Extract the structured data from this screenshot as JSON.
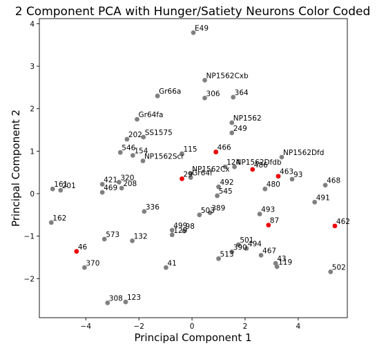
{
  "chart_data": {
    "type": "scatter",
    "title": "2 Component PCA with Hunger/Satiety Neurons Color Coded",
    "xlabel": "Principal Component 1",
    "ylabel": "Principal Component 2",
    "xlim": [
      -5.75,
      5.85
    ],
    "ylim": [
      -2.92,
      4.12
    ],
    "xticks": [
      -4,
      -2,
      0,
      2,
      4
    ],
    "yticks": [
      -2,
      -1,
      0,
      1,
      2,
      3,
      4
    ],
    "colors": {
      "grey": "#808080",
      "red": "#ee0000"
    },
    "points": [
      {
        "label": "E49",
        "x": 0.05,
        "y": 3.79,
        "color": "grey"
      },
      {
        "label": "NP1562Cxb",
        "x": 0.48,
        "y": 2.67,
        "color": "grey"
      },
      {
        "label": "Gr66a",
        "x": -1.3,
        "y": 2.3,
        "color": "grey"
      },
      {
        "label": "306",
        "x": 0.48,
        "y": 2.25,
        "color": "grey"
      },
      {
        "label": "364",
        "x": 1.55,
        "y": 2.27,
        "color": "grey"
      },
      {
        "label": "Gr64fa",
        "x": -2.07,
        "y": 1.75,
        "color": "grey"
      },
      {
        "label": "NP1562",
        "x": 1.5,
        "y": 1.67,
        "color": "grey"
      },
      {
        "label": "249",
        "x": 1.5,
        "y": 1.43,
        "color": "grey"
      },
      {
        "label": "202",
        "x": -2.45,
        "y": 1.28,
        "color": "grey"
      },
      {
        "label": "SS1575",
        "x": -1.83,
        "y": 1.33,
        "color": "grey"
      },
      {
        "label": "546",
        "x": -2.7,
        "y": 0.97,
        "color": "grey"
      },
      {
        "label": "154",
        "x": -2.23,
        "y": 0.9,
        "color": "grey"
      },
      {
        "label": "115",
        "x": -0.38,
        "y": 0.94,
        "color": "grey"
      },
      {
        "label": "466",
        "x": 0.9,
        "y": 0.98,
        "color": "red"
      },
      {
        "label": "NP1562Dfd",
        "x": 3.38,
        "y": 0.86,
        "color": "grey"
      },
      {
        "label": "NP1562Scr",
        "x": -1.85,
        "y": 0.77,
        "color": "grey"
      },
      {
        "label": "124",
        "x": 1.25,
        "y": 0.63,
        "color": "grey"
      },
      {
        "label": "NP1562Dfdb",
        "x": 1.6,
        "y": 0.63,
        "color": "grey"
      },
      {
        "label": "486",
        "x": 2.28,
        "y": 0.57,
        "color": "red"
      },
      {
        "label": "NP1562Cx",
        "x": -0.05,
        "y": 0.47,
        "color": "grey"
      },
      {
        "label": "Gr64f",
        "x": -0.05,
        "y": 0.38,
        "color": "grey"
      },
      {
        "label": "463",
        "x": 3.25,
        "y": 0.41,
        "color": "red"
      },
      {
        "label": "93",
        "x": 3.77,
        "y": 0.34,
        "color": "grey"
      },
      {
        "label": "29",
        "x": -0.38,
        "y": 0.35,
        "color": "red"
      },
      {
        "label": "421",
        "x": -3.38,
        "y": 0.22,
        "color": "grey"
      },
      {
        "label": "320",
        "x": -2.75,
        "y": 0.27,
        "color": "grey"
      },
      {
        "label": "492",
        "x": 1.0,
        "y": 0.16,
        "color": "grey"
      },
      {
        "label": "480",
        "x": 2.75,
        "y": 0.11,
        "color": "grey"
      },
      {
        "label": "468",
        "x": 5.02,
        "y": 0.2,
        "color": "grey"
      },
      {
        "label": "161",
        "x": -5.25,
        "y": 0.11,
        "color": "grey"
      },
      {
        "label": "201",
        "x": -4.95,
        "y": 0.08,
        "color": "grey"
      },
      {
        "label": "208",
        "x": -2.65,
        "y": 0.13,
        "color": "grey"
      },
      {
        "label": "469",
        "x": -3.38,
        "y": 0.03,
        "color": "grey"
      },
      {
        "label": "545",
        "x": 0.95,
        "y": -0.05,
        "color": "grey"
      },
      {
        "label": "491",
        "x": 4.62,
        "y": -0.2,
        "color": "grey"
      },
      {
        "label": "336",
        "x": -1.8,
        "y": -0.42,
        "color": "grey"
      },
      {
        "label": "389",
        "x": 0.68,
        "y": -0.45,
        "color": "grey"
      },
      {
        "label": "503",
        "x": 0.28,
        "y": -0.5,
        "color": "grey"
      },
      {
        "label": "493",
        "x": 2.55,
        "y": -0.48,
        "color": "grey"
      },
      {
        "label": "162",
        "x": -5.3,
        "y": -0.68,
        "color": "grey"
      },
      {
        "label": "87",
        "x": 2.88,
        "y": -0.74,
        "color": "red"
      },
      {
        "label": "462",
        "x": 5.38,
        "y": -0.76,
        "color": "red"
      },
      {
        "label": "499",
        "x": -0.75,
        "y": -0.86,
        "color": "grey"
      },
      {
        "label": "98",
        "x": -0.3,
        "y": -0.88,
        "color": "grey"
      },
      {
        "label": "129",
        "x": -0.75,
        "y": -0.97,
        "color": "grey"
      },
      {
        "label": "573",
        "x": -3.3,
        "y": -1.07,
        "color": "grey"
      },
      {
        "label": "132",
        "x": -2.25,
        "y": -1.11,
        "color": "grey"
      },
      {
        "label": "501",
        "x": 1.75,
        "y": -1.2,
        "color": "grey"
      },
      {
        "label": "494",
        "x": 2.05,
        "y": -1.29,
        "color": "grey"
      },
      {
        "label": "46",
        "x": -4.35,
        "y": -1.36,
        "color": "red"
      },
      {
        "label": "390",
        "x": 1.5,
        "y": -1.37,
        "color": "grey"
      },
      {
        "label": "467",
        "x": 2.6,
        "y": -1.45,
        "color": "grey"
      },
      {
        "label": "513",
        "x": 1.0,
        "y": -1.53,
        "color": "grey"
      },
      {
        "label": "43",
        "x": 3.15,
        "y": -1.64,
        "color": "grey"
      },
      {
        "label": "370",
        "x": -4.05,
        "y": -1.74,
        "color": "grey"
      },
      {
        "label": "41",
        "x": -0.98,
        "y": -1.74,
        "color": "grey"
      },
      {
        "label": "119",
        "x": 3.2,
        "y": -1.72,
        "color": "grey"
      },
      {
        "label": "502",
        "x": 5.22,
        "y": -1.84,
        "color": "grey"
      },
      {
        "label": "308",
        "x": -3.18,
        "y": -2.57,
        "color": "grey"
      },
      {
        "label": "123",
        "x": -2.5,
        "y": -2.55,
        "color": "grey"
      }
    ]
  }
}
